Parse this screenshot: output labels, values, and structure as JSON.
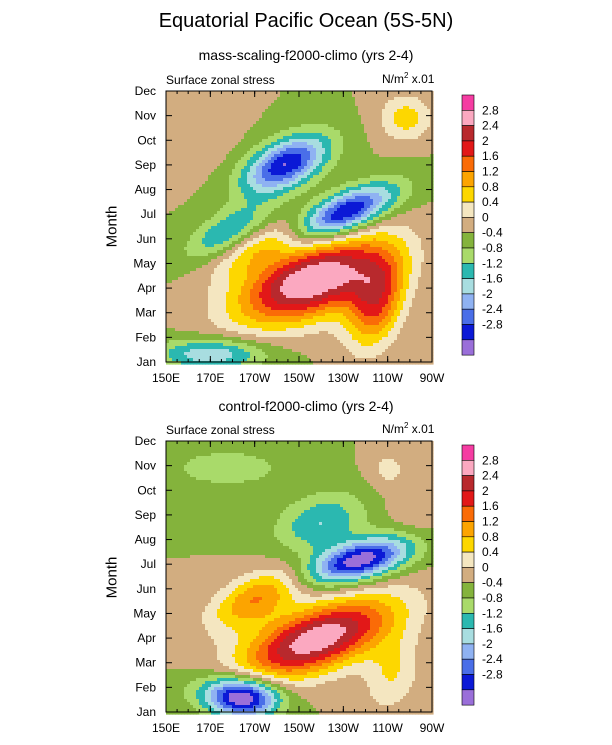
{
  "title": "Equatorial Pacific Ocean (5S-5N)",
  "colors": [
    "#9a6fd9",
    "#0b19d6",
    "#4a6ee8",
    "#8fb2f2",
    "#a8dde0",
    "#2bb8b0",
    "#a9da6a",
    "#84b33c",
    "#d2ad80",
    "#f4e6c0",
    "#fdd700",
    "#fca400",
    "#fa6b07",
    "#e21818",
    "#b8292d",
    "#fba8c0",
    "#f53ca2"
  ],
  "colorbar_labels": [
    "2.8",
    "2.4",
    "2",
    "1.6",
    "1.2",
    "0.8",
    "0.4",
    "0",
    "-0.4",
    "-0.8",
    "-1.2",
    "-1.6",
    "-2",
    "-2.4",
    "-2.8"
  ],
  "chart_data": [
    {
      "type": "heatmap",
      "title": "mass-scaling-f2000-climo (yrs 2-4)",
      "left_string": "Surface zonal stress",
      "right_string": "N/m",
      "right_exp": "2",
      "right_suffix": " x.01",
      "ylabel": "Month",
      "x_ticks": [
        "150E",
        "170E",
        "170W",
        "150W",
        "130W",
        "110W",
        "90W"
      ],
      "y_ticks": [
        "Jan",
        "Feb",
        "Mar",
        "Apr",
        "May",
        "Jun",
        "Jul",
        "Aug",
        "Sep",
        "Oct",
        "Nov",
        "Dec"
      ],
      "xlim": [
        150,
        270
      ],
      "levels": [
        -2.8,
        -2.4,
        -2,
        -1.6,
        -1.2,
        -0.8,
        -0.4,
        0,
        0.4,
        0.8,
        1.2,
        1.6,
        2,
        2.4,
        2.8
      ]
    },
    {
      "type": "heatmap",
      "title": "control-f2000-climo (yrs 2-4)",
      "left_string": "Surface zonal stress",
      "right_string": "N/m",
      "right_exp": "2",
      "right_suffix": " x.01",
      "ylabel": "Month",
      "x_ticks": [
        "150E",
        "170E",
        "170W",
        "150W",
        "130W",
        "110W",
        "90W"
      ],
      "y_ticks": [
        "Jan",
        "Feb",
        "Mar",
        "Apr",
        "May",
        "Jun",
        "Jul",
        "Aug",
        "Sep",
        "Oct",
        "Nov",
        "Dec"
      ],
      "xlim": [
        150,
        270
      ],
      "levels": [
        -2.8,
        -2.4,
        -2,
        -1.6,
        -1.2,
        -0.8,
        -0.4,
        0,
        0.4,
        0.8,
        1.2,
        1.6,
        2,
        2.4,
        2.8
      ]
    }
  ]
}
